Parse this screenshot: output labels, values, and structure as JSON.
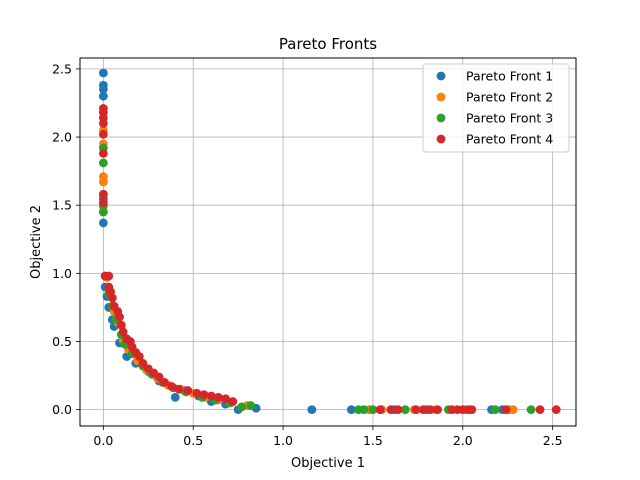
{
  "chart_data": {
    "type": "scatter",
    "title": "Pareto Fronts",
    "xlabel": "Objective 1",
    "ylabel": "Objective 2",
    "xlim": [
      -0.13,
      2.63
    ],
    "ylim": [
      -0.12,
      2.58
    ],
    "xticks": [
      0.0,
      0.5,
      1.0,
      1.5,
      2.0,
      2.5
    ],
    "xtick_labels": [
      "0.0",
      "0.5",
      "1.0",
      "1.5",
      "2.0",
      "2.5"
    ],
    "yticks": [
      0.0,
      0.5,
      1.0,
      1.5,
      2.0,
      2.5
    ],
    "ytick_labels": [
      "0.0",
      "0.5",
      "1.0",
      "1.5",
      "2.0",
      "2.5"
    ],
    "grid": true,
    "legend_position": "top-right",
    "series": [
      {
        "name": "Pareto Front 1",
        "color": "#1f77b4",
        "points": [
          [
            0.0,
            2.47
          ],
          [
            0.0,
            2.38
          ],
          [
            0.0,
            2.35
          ],
          [
            0.0,
            2.3
          ],
          [
            0.0,
            1.55
          ],
          [
            0.0,
            1.37
          ],
          [
            0.01,
            0.98
          ],
          [
            0.01,
            0.9
          ],
          [
            0.02,
            0.83
          ],
          [
            0.03,
            0.75
          ],
          [
            0.05,
            0.66
          ],
          [
            0.06,
            0.61
          ],
          [
            0.09,
            0.49
          ],
          [
            0.13,
            0.39
          ],
          [
            0.18,
            0.34
          ],
          [
            0.25,
            0.28
          ],
          [
            0.31,
            0.21
          ],
          [
            0.4,
            0.09
          ],
          [
            0.45,
            0.14
          ],
          [
            0.53,
            0.1
          ],
          [
            0.6,
            0.06
          ],
          [
            0.68,
            0.04
          ],
          [
            0.75,
            0.0
          ],
          [
            0.85,
            0.01
          ],
          [
            1.16,
            0.0
          ],
          [
            1.38,
            0.0
          ],
          [
            1.48,
            0.0
          ],
          [
            1.62,
            0.0
          ],
          [
            1.8,
            0.0
          ],
          [
            2.16,
            0.0
          ],
          [
            2.22,
            0.0
          ]
        ]
      },
      {
        "name": "Pareto Front 2",
        "color": "#ff7f0e",
        "points": [
          [
            0.0,
            1.71
          ],
          [
            0.0,
            1.67
          ],
          [
            0.0,
            1.49
          ],
          [
            0.0,
            1.45
          ],
          [
            0.0,
            1.95
          ],
          [
            0.0,
            2.05
          ],
          [
            0.02,
            0.97
          ],
          [
            0.04,
            0.87
          ],
          [
            0.06,
            0.72
          ],
          [
            0.08,
            0.64
          ],
          [
            0.11,
            0.51
          ],
          [
            0.14,
            0.44
          ],
          [
            0.19,
            0.36
          ],
          [
            0.24,
            0.29
          ],
          [
            0.3,
            0.23
          ],
          [
            0.36,
            0.18
          ],
          [
            0.43,
            0.15
          ],
          [
            0.5,
            0.12
          ],
          [
            0.57,
            0.09
          ],
          [
            0.64,
            0.07
          ],
          [
            0.71,
            0.05
          ],
          [
            0.8,
            0.03
          ],
          [
            1.48,
            0.0
          ],
          [
            1.55,
            0.0
          ],
          [
            1.73,
            0.0
          ],
          [
            1.85,
            0.0
          ],
          [
            2.02,
            0.0
          ],
          [
            2.26,
            0.0
          ],
          [
            2.28,
            0.0
          ]
        ]
      },
      {
        "name": "Pareto Front 3",
        "color": "#2ca02c",
        "points": [
          [
            0.0,
            1.92
          ],
          [
            0.0,
            1.81
          ],
          [
            0.0,
            1.58
          ],
          [
            0.0,
            1.5
          ],
          [
            0.0,
            1.45
          ],
          [
            0.03,
            0.85
          ],
          [
            0.05,
            0.76
          ],
          [
            0.07,
            0.66
          ],
          [
            0.1,
            0.55
          ],
          [
            0.12,
            0.48
          ],
          [
            0.16,
            0.41
          ],
          [
            0.22,
            0.32
          ],
          [
            0.27,
            0.26
          ],
          [
            0.33,
            0.2
          ],
          [
            0.39,
            0.16
          ],
          [
            0.46,
            0.13
          ],
          [
            0.55,
            0.09
          ],
          [
            0.62,
            0.07
          ],
          [
            0.7,
            0.05
          ],
          [
            0.77,
            0.02
          ],
          [
            0.82,
            0.03
          ],
          [
            1.42,
            0.0
          ],
          [
            1.45,
            0.0
          ],
          [
            1.5,
            0.0
          ],
          [
            1.68,
            0.0
          ],
          [
            1.92,
            0.0
          ],
          [
            2.18,
            0.0
          ],
          [
            2.38,
            0.0
          ]
        ]
      },
      {
        "name": "Pareto Front 4",
        "color": "#d62728",
        "points": [
          [
            0.0,
            2.21
          ],
          [
            0.0,
            2.18
          ],
          [
            0.0,
            2.14
          ],
          [
            0.0,
            2.1
          ],
          [
            0.0,
            2.02
          ],
          [
            0.0,
            1.88
          ],
          [
            0.0,
            1.58
          ],
          [
            0.0,
            1.52
          ],
          [
            0.01,
            0.98
          ],
          [
            0.03,
            0.98
          ],
          [
            0.03,
            0.9
          ],
          [
            0.04,
            0.86
          ],
          [
            0.05,
            0.82
          ],
          [
            0.06,
            0.76
          ],
          [
            0.08,
            0.72
          ],
          [
            0.09,
            0.68
          ],
          [
            0.1,
            0.62
          ],
          [
            0.11,
            0.57
          ],
          [
            0.13,
            0.52
          ],
          [
            0.15,
            0.5
          ],
          [
            0.16,
            0.46
          ],
          [
            0.18,
            0.42
          ],
          [
            0.2,
            0.39
          ],
          [
            0.22,
            0.34
          ],
          [
            0.25,
            0.3
          ],
          [
            0.28,
            0.27
          ],
          [
            0.31,
            0.24
          ],
          [
            0.34,
            0.2
          ],
          [
            0.38,
            0.17
          ],
          [
            0.42,
            0.15
          ],
          [
            0.47,
            0.14
          ],
          [
            0.52,
            0.12
          ],
          [
            0.56,
            0.11
          ],
          [
            0.6,
            0.1
          ],
          [
            0.64,
            0.09
          ],
          [
            0.68,
            0.08
          ],
          [
            0.72,
            0.06
          ],
          [
            1.54,
            0.0
          ],
          [
            1.6,
            0.0
          ],
          [
            1.64,
            0.0
          ],
          [
            1.74,
            0.0
          ],
          [
            1.78,
            0.0
          ],
          [
            1.82,
            0.0
          ],
          [
            1.86,
            0.0
          ],
          [
            1.94,
            0.0
          ],
          [
            1.97,
            0.0
          ],
          [
            2.0,
            0.0
          ],
          [
            2.03,
            0.0
          ],
          [
            2.05,
            0.0
          ],
          [
            2.24,
            0.0
          ],
          [
            2.43,
            0.0
          ],
          [
            2.52,
            0.0
          ]
        ]
      }
    ]
  }
}
